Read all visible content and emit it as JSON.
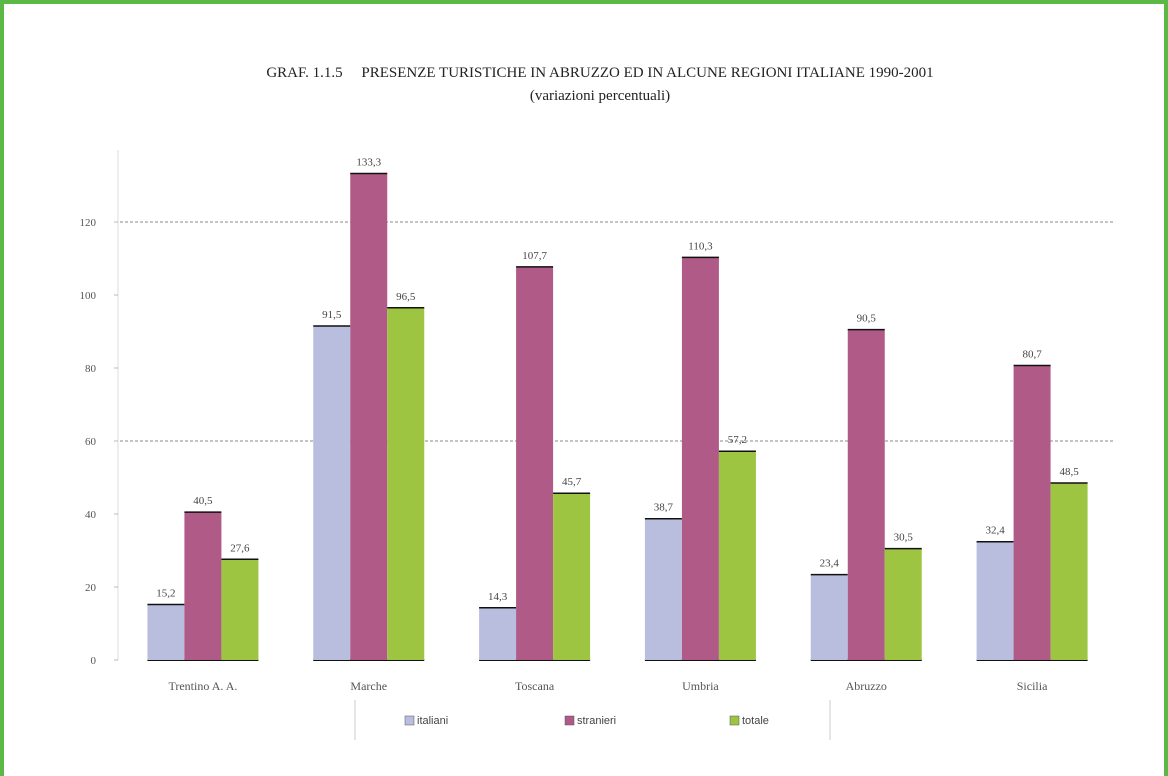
{
  "chart_data": {
    "type": "bar",
    "title": "GRAF. 1.1.5     PRESENZE TURISTICHE IN ABRUZZO ED IN ALCUNE REGIONI ITALIANE 1990-2001",
    "subtitle": "(variazioni percentuali)",
    "categories": [
      "Trentino A. A.",
      "Marche",
      "Toscana",
      "Umbria",
      "Abruzzo",
      "Sicilia"
    ],
    "series": [
      {
        "name": "italiani",
        "color": "#b9bedf",
        "values": [
          15.2,
          91.5,
          14.3,
          38.7,
          23.4,
          32.4
        ],
        "value_labels": [
          "15,2",
          "91,5",
          "14,3",
          "38,7",
          "23,4",
          "32,4"
        ]
      },
      {
        "name": "stranieri",
        "color": "#b05a87",
        "values": [
          40.5,
          133.3,
          107.7,
          110.3,
          90.5,
          80.7
        ],
        "value_labels": [
          "40,5",
          "133,3",
          "107,7",
          "110,3",
          "90,5",
          "80,7"
        ]
      },
      {
        "name": "totale",
        "color": "#9dc542",
        "values": [
          27.6,
          96.5,
          45.7,
          57.2,
          30.5,
          48.5
        ],
        "value_labels": [
          "27,6",
          "96,5",
          "45,7",
          "57,2",
          "30,5",
          "48,5"
        ]
      }
    ],
    "ylim": [
      0,
      140
    ],
    "yticks": [
      0,
      20,
      40,
      60,
      80,
      100,
      120
    ],
    "gridlines": [
      60,
      120
    ]
  }
}
